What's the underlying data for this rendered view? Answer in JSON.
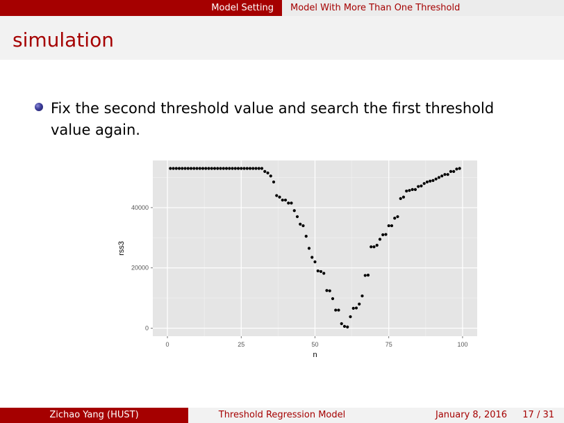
{
  "nav": {
    "section": "Model Setting",
    "subsection": "Model With More Than One Threshold"
  },
  "frame": {
    "title": "simulation",
    "bullet": "Fix the second threshold value and search the first threshold value again."
  },
  "chart_data": {
    "type": "scatter",
    "xlabel": "n",
    "ylabel": "rss3",
    "xlim": [
      0,
      100
    ],
    "ylim": [
      0,
      54000
    ],
    "x_ticks": [
      0,
      25,
      50,
      75,
      100
    ],
    "y_ticks": [
      0,
      20000,
      40000
    ],
    "grid": true,
    "x": [
      1,
      2,
      3,
      4,
      5,
      6,
      7,
      8,
      9,
      10,
      11,
      12,
      13,
      14,
      15,
      16,
      17,
      18,
      19,
      20,
      21,
      22,
      23,
      24,
      25,
      26,
      27,
      28,
      29,
      30,
      31,
      32,
      33,
      34,
      35,
      36,
      37,
      38,
      39,
      40,
      41,
      42,
      43,
      44,
      45,
      46,
      47,
      48,
      49,
      50,
      51,
      52,
      53,
      54,
      55,
      56,
      57,
      58,
      59,
      60,
      61,
      62,
      63,
      64,
      65,
      66,
      67,
      68,
      69,
      70,
      71,
      72,
      73,
      74,
      75,
      76,
      77,
      78,
      79,
      80,
      81,
      82,
      83,
      84,
      85,
      86,
      87,
      88,
      89,
      90,
      91,
      92,
      93,
      94,
      95,
      96,
      97,
      98,
      99
    ],
    "y": [
      53000,
      53000,
      53000,
      53000,
      53000,
      53000,
      53000,
      53000,
      53000,
      53000,
      53000,
      53000,
      53000,
      53000,
      53000,
      53000,
      53000,
      53000,
      53000,
      53000,
      53000,
      53000,
      53000,
      53000,
      53000,
      53000,
      53000,
      53000,
      53000,
      53000,
      53000,
      53000,
      52000,
      51500,
      50500,
      48500,
      44000,
      43500,
      42500,
      42500,
      41500,
      41500,
      39000,
      37000,
      34500,
      34000,
      30500,
      26500,
      23500,
      22000,
      19000,
      18800,
      18200,
      12500,
      12400,
      9800,
      6000,
      6000,
      1500,
      600,
      400,
      3800,
      6600,
      6700,
      8000,
      10700,
      17500,
      17600,
      27000,
      27000,
      27500,
      29500,
      31000,
      31100,
      34000,
      34000,
      36500,
      37000,
      43000,
      43500,
      45500,
      45700,
      46000,
      46000,
      47000,
      47200,
      48000,
      48500,
      48800,
      49000,
      49500,
      50000,
      50500,
      51000,
      51000,
      52000,
      52000,
      52800,
      53000
    ]
  },
  "footer": {
    "author": "Zichao Yang  (HUST)",
    "title": "Threshold Regression Model",
    "date": "January 8, 2016",
    "page": "17 / 31"
  }
}
